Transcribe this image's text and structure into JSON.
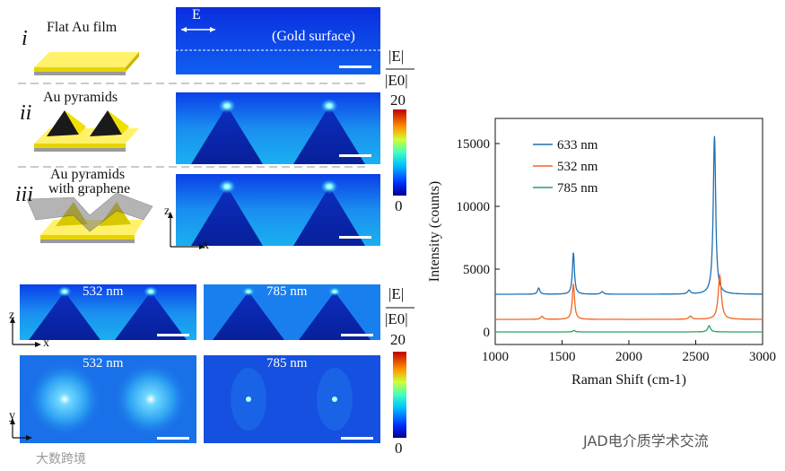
{
  "panels": {
    "i": {
      "numeral": "i",
      "label": "Flat Au film",
      "e_label": "E",
      "surface_label": "(Gold surface)"
    },
    "ii": {
      "numeral": "ii",
      "label": "Au pyramids"
    },
    "iii": {
      "numeral": "iii",
      "label_line1": "Au pyramids",
      "label_line2": "with graphene"
    }
  },
  "field_colorbar_top": {
    "numerator": "|E|",
    "denominator": "|E0|",
    "max": "20",
    "min": "0"
  },
  "field_colorbar_bottom": {
    "numerator": "|E|",
    "denominator": "|E0|",
    "max": "20",
    "min": "0"
  },
  "axes_top": {
    "z": "z",
    "x": "x"
  },
  "axes_bottom": {
    "z": "z",
    "x": "x",
    "y": "y"
  },
  "wavelength_panels": {
    "side_532": "532 nm",
    "side_785": "785 nm",
    "top_532": "532 nm",
    "top_785": "785 nm"
  },
  "colors": {
    "blue": "#1f6fb4",
    "orange": "#f26522",
    "green": "#2ca25f"
  },
  "chart_data": {
    "type": "line",
    "title": "",
    "xlabel": "Raman Shift (cm-1)",
    "ylabel": "Intensity (counts)",
    "xlim": [
      1000,
      3000
    ],
    "ylim": [
      -1000,
      17000
    ],
    "xticks": [
      1000,
      1500,
      2000,
      2500,
      3000
    ],
    "yticks": [
      0,
      5000,
      10000,
      15000
    ],
    "legend_position": "top-left",
    "series": [
      {
        "name": "633 nm",
        "color": "#1f6fb4",
        "baseline": 3000,
        "peaks": [
          {
            "x": 1325,
            "h": 500,
            "w": 10
          },
          {
            "x": 1585,
            "h": 3300,
            "w": 9
          },
          {
            "x": 1800,
            "h": 200,
            "w": 12
          },
          {
            "x": 2450,
            "h": 300,
            "w": 12
          },
          {
            "x": 2640,
            "h": 12600,
            "w": 11
          }
        ]
      },
      {
        "name": "532 nm",
        "color": "#f26522",
        "baseline": 1000,
        "peaks": [
          {
            "x": 1350,
            "h": 250,
            "w": 12
          },
          {
            "x": 1585,
            "h": 2800,
            "w": 10
          },
          {
            "x": 2460,
            "h": 250,
            "w": 14
          },
          {
            "x": 2680,
            "h": 3500,
            "w": 14
          }
        ]
      },
      {
        "name": "785 nm",
        "color": "#2ca25f",
        "baseline": 0,
        "peaks": [
          {
            "x": 1590,
            "h": 120,
            "w": 10
          },
          {
            "x": 2600,
            "h": 500,
            "w": 12
          }
        ]
      }
    ]
  },
  "watermark": {
    "text": "JAD电介质学术交流",
    "corner_text": "大数跨境"
  }
}
